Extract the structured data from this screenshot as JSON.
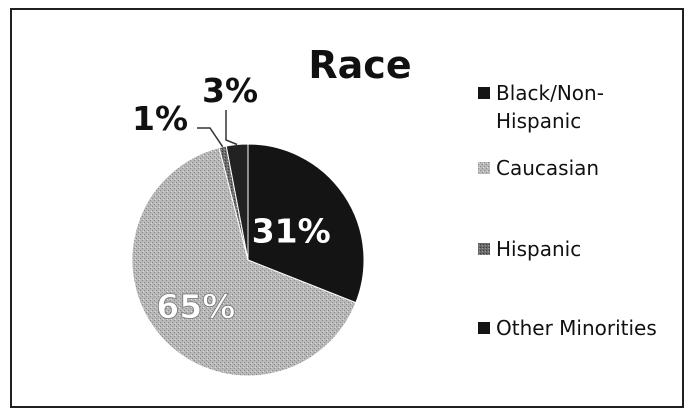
{
  "chart_data": {
    "type": "pie",
    "title": "Race",
    "categories": [
      "Black/Non-Hispanic",
      "Caucasian",
      "Hispanic",
      "Other Minorities"
    ],
    "values": [
      31,
      65,
      1,
      3
    ],
    "data_labels": [
      "31%",
      "65%",
      "1%",
      "3%"
    ],
    "legend": {
      "placement": "right",
      "entries": [
        {
          "lines": [
            "Black/Non-",
            "Hispanic"
          ],
          "color": "#141414"
        },
        {
          "lines": [
            "Caucasian"
          ],
          "color": "#b3b3b3"
        },
        {
          "lines": [
            "Hispanic"
          ],
          "color": "#6e6e6e"
        },
        {
          "lines": [
            "Other Minorities"
          ],
          "color": "#141414"
        }
      ]
    },
    "colors": [
      "#141414",
      "#b3b3b3",
      "#6e6e6e",
      "#222222"
    ]
  }
}
